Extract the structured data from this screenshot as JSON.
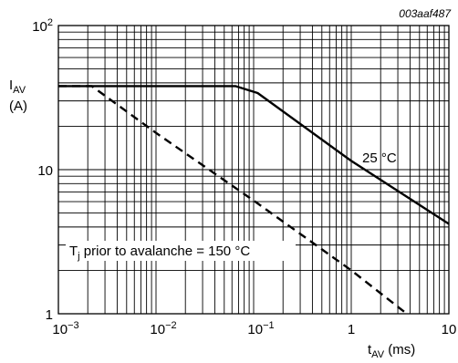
{
  "figure_id": "003aaf487",
  "chart_data": {
    "type": "line",
    "xscale": "log",
    "yscale": "log",
    "xlim": [
      0.001,
      10
    ],
    "ylim": [
      1,
      100
    ],
    "grid": true,
    "xlabel": {
      "main": "t",
      "sub": "AV",
      "unit": " (ms)"
    },
    "ylabel": {
      "main": "I",
      "sub": "AV",
      "unit": "(A)"
    },
    "x_ticks": [
      {
        "value": 0.001,
        "base": "10",
        "exp": "−3"
      },
      {
        "value": 0.01,
        "base": "10",
        "exp": "−2"
      },
      {
        "value": 0.1,
        "base": "10",
        "exp": "−1"
      },
      {
        "value": 1,
        "base": "1",
        "exp": ""
      },
      {
        "value": 10,
        "base": "10",
        "exp": ""
      }
    ],
    "y_ticks": [
      {
        "value": 1,
        "base": "1",
        "exp": ""
      },
      {
        "value": 10,
        "base": "10",
        "exp": ""
      },
      {
        "value": 100,
        "base": "10",
        "exp": "2"
      }
    ],
    "series": [
      {
        "name": "25 °C",
        "style": "solid",
        "color": "#000000",
        "points": [
          [
            0.001,
            38
          ],
          [
            0.065,
            38
          ],
          [
            0.11,
            34
          ],
          [
            1,
            11.5
          ],
          [
            10,
            4.2
          ]
        ]
      },
      {
        "name_main": "T",
        "name_sub": "j",
        "name_rest": " prior to avalanche = 150 °C",
        "style": "dashed",
        "color": "#000000",
        "points": [
          [
            0.001,
            38
          ],
          [
            0.0022,
            38
          ],
          [
            0.01,
            18
          ],
          [
            0.1,
            6.1
          ],
          [
            1,
            2.0
          ],
          [
            3.7,
            1.0
          ]
        ]
      }
    ]
  }
}
